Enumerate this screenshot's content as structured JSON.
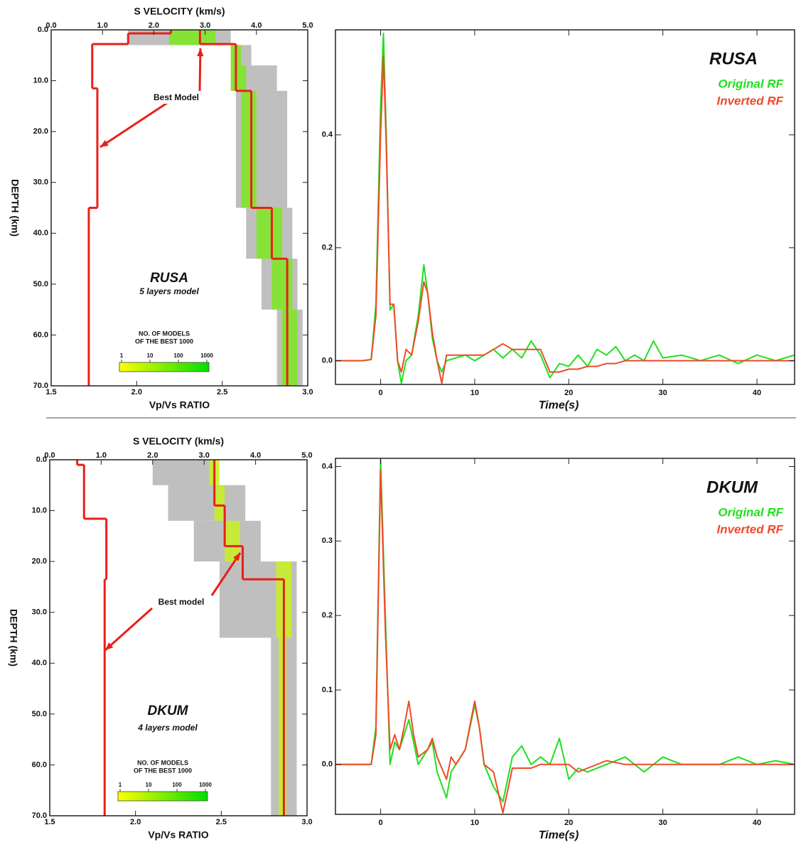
{
  "chart_data": [
    {
      "type": "velocity_model",
      "title": "RUSA",
      "subtitle": "5 layers model",
      "xlabel_top": "S VELOCITY (km/s)",
      "xlabel": "Vp/Vs RATIO",
      "ylabel": "DEPTH (km)",
      "xlim_top": [
        0,
        5
      ],
      "xticks_top": [
        {
          "value": 0,
          "label": "0.0"
        },
        {
          "value": 1,
          "label": "1.0"
        },
        {
          "value": 2,
          "label": "2.0"
        },
        {
          "value": 3,
          "label": "3.0"
        },
        {
          "value": 4,
          "label": "4.0"
        },
        {
          "value": 5,
          "label": "5.0"
        }
      ],
      "xlim": [
        1.5,
        3.0
      ],
      "xticks": [
        1.5,
        {
          "value": 2,
          "label": "2.0"
        },
        2.5,
        {
          "value": 3,
          "label": "3.0"
        }
      ],
      "ylim": [
        0,
        70
      ],
      "yticks": [
        {
          "value": 0,
          "label": "0.0"
        },
        {
          "value": 10,
          "label": "10.0"
        },
        {
          "value": 20,
          "label": "20.0"
        },
        {
          "value": 30,
          "label": "30.0"
        },
        {
          "value": 40,
          "label": "40.0"
        },
        {
          "value": 50,
          "label": "50.0"
        },
        {
          "value": 60,
          "label": "60.0"
        },
        {
          "value": 70,
          "label": "70.0"
        }
      ],
      "bands": [
        {
          "color": "#b4b4b4",
          "depth": [
            0,
            3,
            7,
            12,
            35,
            45,
            55,
            70
          ],
          "lower": [
            1.5,
            3.5,
            3.5,
            3.6,
            3.8,
            4.1,
            4.4
          ],
          "upper": [
            3.5,
            3.9,
            4.4,
            4.6,
            4.7,
            4.8,
            4.9
          ]
        },
        {
          "color": "#7de81e",
          "depth": [
            0,
            3,
            7,
            12,
            35,
            45,
            55,
            70
          ],
          "lower": [
            2.3,
            3.5,
            3.5,
            3.7,
            4.0,
            4.3,
            4.5
          ],
          "upper": [
            3.2,
            3.7,
            3.8,
            4.0,
            4.5,
            4.7,
            4.8
          ]
        }
      ],
      "series": [
        {
          "color": "#e8201a",
          "axis": "top",
          "depth": [
            0,
            2.8,
            12,
            35,
            45,
            70
          ],
          "values": [
            2.9,
            3.6,
            3.9,
            4.3,
            4.6
          ]
        },
        {
          "color": "#e8201a",
          "axis": "bottom",
          "depth": [
            0,
            0.7,
            2.8,
            11.5,
            35,
            70
          ],
          "values": [
            2.2,
            1.95,
            1.74,
            1.77,
            1.72
          ]
        }
      ],
      "annotation": "Best Model",
      "colorbar": {
        "title": [
          "NO. OF MODELS",
          "OF THE BEST 1000"
        ],
        "colors": [
          "#ffff00",
          "#00dd00"
        ],
        "ticks": [
          1,
          10,
          100,
          1000
        ],
        "log": true
      }
    },
    {
      "type": "line",
      "title": "RUSA",
      "xlabel": "Time(s)",
      "x": [
        -4.8,
        -2,
        -1,
        -0.5,
        0,
        0.3,
        0.6,
        1.0,
        1.4,
        1.8,
        2.2,
        2.7,
        3.3,
        4,
        4.6,
        5,
        5.5,
        6,
        6.5,
        7,
        8,
        9,
        10,
        11,
        12,
        13,
        14,
        15,
        16,
        17,
        18,
        19,
        20,
        21,
        22,
        23,
        24,
        25,
        26,
        27,
        28,
        29,
        30,
        32,
        34,
        36,
        38,
        40,
        42,
        44
      ],
      "xlim": [
        -4.8,
        44
      ],
      "xticks": [
        0,
        10,
        20,
        30,
        40
      ],
      "ylim": [
        -0.042,
        0.586
      ],
      "yticks": [
        {
          "value": 0,
          "label": "0.0"
        },
        {
          "value": 0.2,
          "label": "0.2"
        },
        {
          "value": 0.4,
          "label": "0.4"
        }
      ],
      "series": [
        {
          "name": "Original RF",
          "color": "#1ee01e",
          "values": [
            0,
            0,
            0.002,
            0.1,
            0.45,
            0.58,
            0.4,
            0.09,
            0.1,
            0.0,
            -0.04,
            0.0,
            0.01,
            0.08,
            0.17,
            0.12,
            0.04,
            0.0,
            -0.02,
            0.0,
            0.005,
            0.01,
            0.0,
            0.01,
            0.02,
            0.005,
            0.02,
            0.005,
            0.035,
            0.01,
            -0.03,
            -0.005,
            -0.01,
            0.01,
            -0.01,
            0.02,
            0.01,
            0.025,
            0.0,
            0.01,
            0.0,
            0.035,
            0.005,
            0.01,
            0.0,
            0.01,
            -0.005,
            0.01,
            0.0,
            0.01
          ]
        },
        {
          "name": "Inverted RF",
          "color": "#f04a28",
          "values": [
            0,
            0,
            0.002,
            0.08,
            0.4,
            0.54,
            0.38,
            0.1,
            0.1,
            0.0,
            -0.02,
            0.02,
            0.01,
            0.07,
            0.14,
            0.12,
            0.05,
            0.0,
            -0.04,
            0.01,
            0.01,
            0.01,
            0.01,
            0.01,
            0.02,
            0.03,
            0.02,
            0.02,
            0.02,
            0.02,
            -0.02,
            -0.02,
            -0.015,
            -0.015,
            -0.01,
            -0.01,
            -0.005,
            -0.005,
            0.0,
            0.0,
            0.0,
            0.0,
            0.0,
            0.0,
            0.0,
            0.0,
            0.0,
            0.0,
            0.0,
            0.0
          ]
        }
      ]
    },
    {
      "type": "velocity_model",
      "title": "DKUM",
      "subtitle": "4 layers model",
      "xlabel_top": "S VELOCITY (km/s)",
      "xlabel": "Vp/Vs RATIO",
      "ylabel": "DEPTH (km)",
      "xlim_top": [
        0,
        5
      ],
      "xticks_top": [
        {
          "value": 0,
          "label": "0.0"
        },
        {
          "value": 1,
          "label": "1.0"
        },
        {
          "value": 2,
          "label": "2.0"
        },
        {
          "value": 3,
          "label": "3.0"
        },
        {
          "value": 4,
          "label": "4.0"
        },
        {
          "value": 5,
          "label": "5.0"
        }
      ],
      "xlim": [
        1.5,
        3.0
      ],
      "xticks": [
        1.5,
        {
          "value": 2,
          "label": "2.0"
        },
        2.5,
        {
          "value": 3,
          "label": "3.0"
        }
      ],
      "ylim": [
        0,
        70
      ],
      "yticks": [
        {
          "value": 0,
          "label": "0.0"
        },
        {
          "value": 10,
          "label": "10.0"
        },
        {
          "value": 20,
          "label": "20.0"
        },
        {
          "value": 30,
          "label": "30.0"
        },
        {
          "value": 40,
          "label": "40.0"
        },
        {
          "value": 50,
          "label": "50.0"
        },
        {
          "value": 60,
          "label": "60.0"
        },
        {
          "value": 70,
          "label": "70.0"
        }
      ],
      "bands": [
        {
          "color": "#b4b4b4",
          "depth": [
            0,
            5,
            12,
            20,
            35,
            70
          ],
          "lower": [
            2.0,
            2.3,
            2.8,
            3.3,
            4.3
          ],
          "upper": [
            3.2,
            3.8,
            4.1,
            4.8,
            4.8
          ]
        },
        {
          "color": "#c8f01e",
          "depth": [
            0,
            5,
            12,
            20,
            35,
            70
          ],
          "lower": [
            3.1,
            3.2,
            3.4,
            4.4,
            4.45
          ],
          "upper": [
            3.3,
            3.4,
            3.7,
            4.7,
            4.6
          ]
        }
      ],
      "series": [
        {
          "color": "#e8201a",
          "axis": "top",
          "depth": [
            0,
            9,
            17,
            23.5,
            70
          ],
          "values": [
            3.2,
            3.4,
            3.75,
            4.55
          ]
        },
        {
          "color": "#e8201a",
          "axis": "bottom",
          "depth": [
            0,
            1,
            11.6,
            23.5,
            70
          ],
          "values": [
            1.66,
            1.7,
            1.83,
            1.82
          ]
        }
      ],
      "annotation": "Best model",
      "colorbar": {
        "title": [
          "NO. OF MODELS",
          "OF THE BEST 1000"
        ],
        "colors": [
          "#ffff00",
          "#00dd00"
        ],
        "ticks": [
          1,
          10,
          100,
          1000
        ],
        "log": true
      }
    },
    {
      "type": "line",
      "title": "DKUM",
      "xlabel": "Time(s)",
      "x": [
        -4.8,
        -2,
        -1,
        -0.5,
        0,
        0.5,
        1,
        1.5,
        2,
        2.5,
        3,
        3.5,
        4,
        5,
        5.5,
        6,
        7,
        7.5,
        8,
        9,
        10,
        10.5,
        11,
        12,
        13,
        14,
        15,
        16,
        17,
        18,
        19,
        20,
        21,
        22,
        24,
        26,
        28,
        30,
        32,
        34,
        36,
        38,
        40,
        42,
        44
      ],
      "xlim": [
        -4.8,
        44
      ],
      "xticks": [
        0,
        10,
        20,
        30,
        40
      ],
      "ylim": [
        -0.067,
        0.411
      ],
      "yticks": [
        {
          "value": 0,
          "label": "0.0"
        },
        {
          "value": 0.1,
          "label": "0.1"
        },
        {
          "value": 0.2,
          "label": "0.2"
        },
        {
          "value": 0.3,
          "label": "0.3"
        },
        {
          "value": 0.4,
          "label": "0.4"
        }
      ],
      "series": [
        {
          "name": "Original RF",
          "color": "#1ee01e",
          "values": [
            0,
            0,
            0,
            0.05,
            0.41,
            0.2,
            0.0,
            0.03,
            0.02,
            0.04,
            0.06,
            0.03,
            0.0,
            0.02,
            0.03,
            -0.01,
            -0.045,
            -0.01,
            0.0,
            0.02,
            0.08,
            0.05,
            0.0,
            -0.03,
            -0.05,
            0.01,
            0.025,
            0.0,
            0.01,
            0.0,
            0.035,
            -0.02,
            -0.005,
            -0.01,
            0.0,
            0.01,
            -0.01,
            0.01,
            0.0,
            0.0,
            0.0,
            0.01,
            0.0,
            0.005,
            0.0
          ]
        },
        {
          "name": "Inverted RF",
          "color": "#f04a28",
          "values": [
            0,
            0,
            0,
            0.04,
            0.395,
            0.18,
            0.02,
            0.04,
            0.02,
            0.05,
            0.085,
            0.04,
            0.01,
            0.02,
            0.035,
            0.01,
            -0.02,
            0.01,
            0.0,
            0.02,
            0.085,
            0.05,
            0.0,
            -0.01,
            -0.065,
            -0.005,
            -0.005,
            -0.005,
            0.0,
            0.0,
            0.0,
            0.0,
            -0.01,
            -0.005,
            0.005,
            0.0,
            0.0,
            0.0,
            0.0,
            0.0,
            0.0,
            0.0,
            0.0,
            0.0,
            0.0
          ]
        }
      ]
    }
  ]
}
